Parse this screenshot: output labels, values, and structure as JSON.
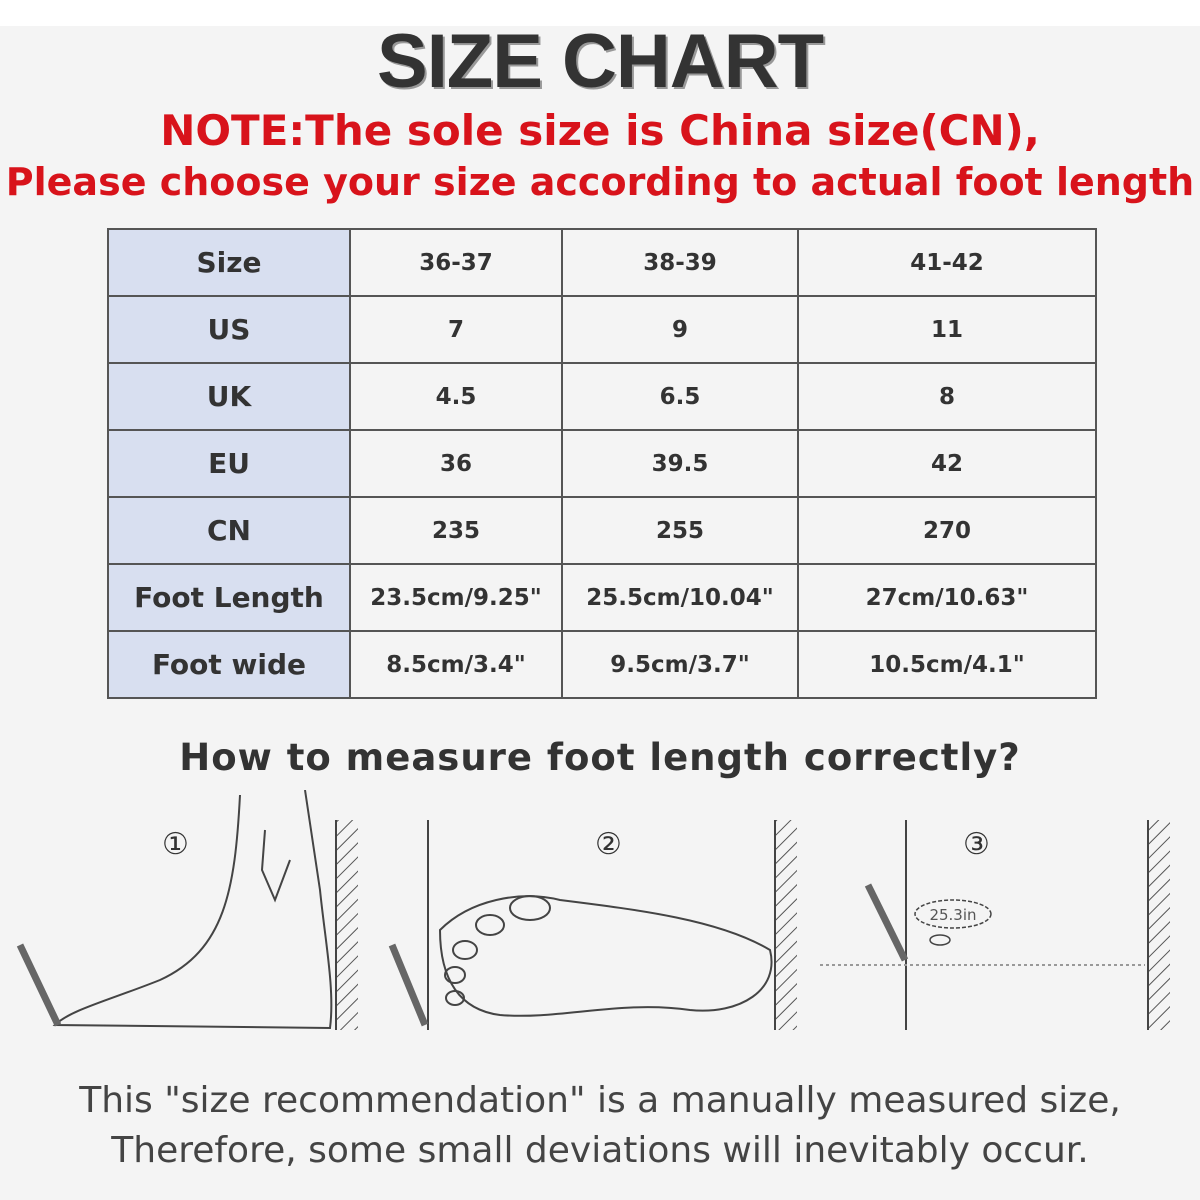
{
  "title": "SIZE CHART",
  "note": {
    "line1": "NOTE:The sole size is China size(CN),",
    "line2": "Please choose your size according to actual foot length"
  },
  "table": {
    "rows": [
      {
        "label": "Size",
        "values": [
          "36-37",
          "38-39",
          "41-42"
        ]
      },
      {
        "label": "US",
        "values": [
          "7",
          "9",
          "11"
        ]
      },
      {
        "label": "UK",
        "values": [
          "4.5",
          "6.5",
          "8"
        ]
      },
      {
        "label": "EU",
        "values": [
          "36",
          "39.5",
          "42"
        ]
      },
      {
        "label": "CN",
        "values": [
          "235",
          "255",
          "270"
        ]
      },
      {
        "label": "Foot Length",
        "values": [
          "23.5cm/9.25\"",
          "25.5cm/10.04\"",
          "27cm/10.63\""
        ]
      },
      {
        "label": "Foot wide",
        "values": [
          "8.5cm/3.4\"",
          "9.5cm/3.7\"",
          "10.5cm/4.1\""
        ]
      }
    ],
    "header_color": "#d8dff0"
  },
  "measure": {
    "question": "How to measure foot length correctly?",
    "steps": [
      "①",
      "②",
      "③"
    ],
    "reading": "25.3in"
  },
  "footer": {
    "line1": "This \"size recommendation\" is a manually measured size,",
    "line2": "Therefore, some small deviations will inevitably occur."
  }
}
